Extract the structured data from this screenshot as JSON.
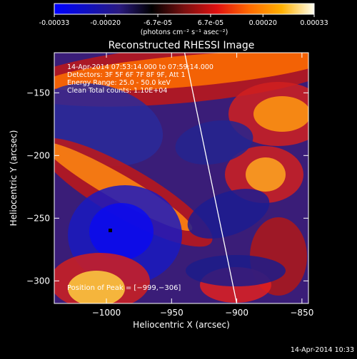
{
  "colorbar": {
    "tick_labels": [
      "-0.00033",
      "-0.00020",
      "-6.7e-05",
      "6.7e-05",
      "0.00020",
      "0.00033"
    ],
    "ticks": [
      -0.00033,
      -0.0002,
      -6.7e-05,
      6.7e-05,
      0.0002,
      0.00033
    ],
    "range": [
      -0.00033,
      0.00033
    ],
    "unit_label": "(photons cm⁻² s⁻¹ asec⁻²)",
    "colors": [
      "#0000ff",
      "#1010c0",
      "#2a1a80",
      "#000000",
      "#7a1010",
      "#e01010",
      "#ff6a00",
      "#ffb000",
      "#fffff0"
    ]
  },
  "chart_data": {
    "type": "heatmap",
    "title": "Reconstructed RHESSI Image",
    "xlabel": "Heliocentric X (arcsec)",
    "ylabel": "Heliocentric Y (arcsec)",
    "xlim": [
      -1040,
      -845
    ],
    "ylim": [
      -318,
      -118
    ],
    "x_ticks": [
      -1000,
      -950,
      -900,
      -850
    ],
    "x_tick_labels": [
      "−1000",
      "−950",
      "−900",
      "−850"
    ],
    "y_ticks": [
      -300,
      -250,
      -200,
      -150
    ],
    "y_tick_labels": [
      "−300",
      "−250",
      "−200",
      "−150"
    ],
    "info_lines": [
      "14-Apr-2014 07:53:14.000 to 07:59:14.000",
      "Detectors: 3F 5F 6F 7F 8F 9F, Att 1",
      "Energy Range: 25.0 - 50.0 keV",
      "Clean     Total counts: 1.10E+04"
    ],
    "peak_label": "Position of Peak = [−999,−306]",
    "peak_marker": [
      -999,
      -306
    ],
    "limb_line": [
      [
        -940,
        -118
      ],
      [
        -900,
        -318
      ]
    ]
  },
  "footer": {
    "timestamp": "14-Apr-2014 10:33"
  }
}
